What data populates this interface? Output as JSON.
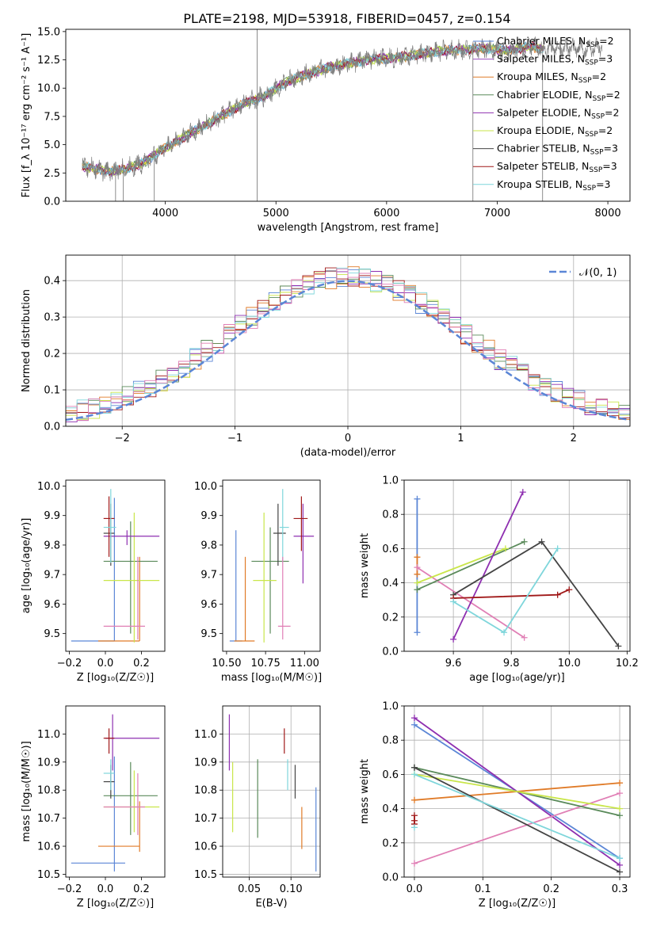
{
  "figure_title": "PLATE=2198, MJD=53918, FIBERID=0457, z=0.154",
  "colors": {
    "Chabrier MILES": "#5b86d6",
    "Salpeter MILES": "#9c4fbf",
    "Kroupa MILES": "#e07b28",
    "Chabrier ELODIE": "#5a8a5a",
    "Salpeter ELODIE": "#8e2fb0",
    "Kroupa ELODIE": "#c9e64a",
    "Chabrier STELIB": "#444444",
    "Salpeter STELIB": "#a01818",
    "Kroupa STELIB": "#7fd6db",
    "pink": "#e07fb5",
    "data": "#808080",
    "gaussian": "#5b86d6"
  },
  "chart_data": [
    {
      "id": "spectrum",
      "type": "line",
      "xlabel": "wavelength [Angstrom, rest frame]",
      "ylabel": "Flux [f_λ 10⁻¹⁷ erg cm⁻² s⁻¹ A⁻¹]",
      "xlim": [
        3100,
        8200
      ],
      "ylim": [
        0,
        15.2
      ],
      "xticks": [
        4000,
        5000,
        6000,
        7000,
        8000
      ],
      "yticks": [
        0.0,
        2.5,
        5.0,
        7.5,
        10.0,
        12.5,
        15.0
      ],
      "legend_position": "upper-right",
      "legend": [
        {
          "label": "Chabrier MILES, N",
          "sub": "SSP",
          "tail": "=2",
          "color_key": "Chabrier MILES"
        },
        {
          "label": "Salpeter MILES, N",
          "sub": "SSP",
          "tail": "=3",
          "color_key": "Salpeter MILES"
        },
        {
          "label": "Kroupa MILES, N",
          "sub": "SSP",
          "tail": "=2",
          "color_key": "Kroupa MILES"
        },
        {
          "label": "Chabrier ELODIE, N",
          "sub": "SSP",
          "tail": "=2",
          "color_key": "Chabrier ELODIE"
        },
        {
          "label": "Salpeter ELODIE, N",
          "sub": "SSP",
          "tail": "=2",
          "color_key": "Salpeter ELODIE"
        },
        {
          "label": "Kroupa ELODIE, N",
          "sub": "SSP",
          "tail": "=2",
          "color_key": "Kroupa ELODIE"
        },
        {
          "label": "Chabrier STELIB, N",
          "sub": "SSP",
          "tail": "=3",
          "color_key": "Chabrier STELIB"
        },
        {
          "label": "Salpeter STELIB, N",
          "sub": "SSP",
          "tail": "=3",
          "color_key": "Salpeter STELIB"
        },
        {
          "label": "Kroupa STELIB, N",
          "sub": "SSP",
          "tail": "=3",
          "color_key": "Kroupa STELIB"
        }
      ],
      "continuum": [
        [
          3250,
          3.1
        ],
        [
          3500,
          2.6
        ],
        [
          3650,
          2.9
        ],
        [
          3800,
          3.4
        ],
        [
          3950,
          4.4
        ],
        [
          4100,
          5.3
        ],
        [
          4300,
          6.4
        ],
        [
          4500,
          7.5
        ],
        [
          4700,
          8.6
        ],
        [
          4900,
          9.3
        ],
        [
          5100,
          10.6
        ],
        [
          5300,
          11.3
        ],
        [
          5500,
          11.9
        ],
        [
          5700,
          12.3
        ],
        [
          5900,
          12.6
        ],
        [
          6100,
          12.7
        ],
        [
          6300,
          13.0
        ],
        [
          6500,
          13.3
        ],
        [
          6700,
          13.4
        ],
        [
          6900,
          13.5
        ],
        [
          7100,
          13.3
        ],
        [
          7300,
          13.7
        ],
        [
          7400,
          13.5
        ]
      ],
      "data_extent": [
        3250,
        7950
      ],
      "spikes": [
        [
          4830,
          0.0,
          15.2
        ],
        [
          3550,
          0.0,
          3.5
        ],
        [
          3620,
          0.0,
          3.2
        ],
        [
          3900,
          0.0,
          4.0
        ],
        [
          6780,
          0.0,
          13.5
        ],
        [
          7410,
          0.0,
          13.5
        ]
      ]
    },
    {
      "id": "residuals",
      "type": "line",
      "xlabel": "(data-model)/error",
      "ylabel": "Normed distribution",
      "xlim": [
        -2.5,
        2.5
      ],
      "ylim": [
        0,
        0.47
      ],
      "xticks": [
        -2,
        -1,
        0,
        1,
        2
      ],
      "yticks": [
        0.0,
        0.1,
        0.2,
        0.3,
        0.4
      ],
      "legend_position": "upper-right",
      "legend_label": "𝒩(0, 1)",
      "grid": true
    },
    {
      "id": "age_vs_Z",
      "type": "scatter",
      "xlabel": "Z [log₁₀(Z/Z☉)]",
      "ylabel": "age  [log₁₀(age/yr)]",
      "xlim": [
        -0.22,
        0.33
      ],
      "ylim": [
        9.44,
        10.02
      ],
      "xticks": [
        -0.2,
        0.0,
        0.2
      ],
      "yticks": [
        9.5,
        9.6,
        9.7,
        9.8,
        9.9,
        10.0
      ],
      "points": [
        {
          "c": "Chabrier MILES",
          "x": 0.05,
          "xlo": -0.19,
          "xhi": 0.05,
          "y": 9.475,
          "ylo": 9.475,
          "yhi": 9.96
        },
        {
          "c": "Kroupa MILES",
          "x": 0.19,
          "xlo": -0.04,
          "xhi": 0.19,
          "y": 9.475,
          "ylo": 9.475,
          "yhi": 9.76
        },
        {
          "c": "Chabrier ELODIE",
          "x": 0.14,
          "xlo": -0.01,
          "xhi": 0.29,
          "y": 9.745,
          "ylo": 9.5,
          "yhi": 9.88
        },
        {
          "c": "Kroupa ELODIE",
          "x": 0.16,
          "xlo": -0.01,
          "xhi": 0.3,
          "y": 9.68,
          "ylo": 9.47,
          "yhi": 9.91
        },
        {
          "c": "Salpeter ELODIE",
          "x": 0.12,
          "xlo": -0.01,
          "xhi": 0.3,
          "y": 9.83,
          "ylo": 9.8,
          "yhi": 9.85
        },
        {
          "c": "Chabrier STELIB",
          "x": 0.03,
          "xlo": -0.01,
          "xhi": 0.05,
          "y": 9.84,
          "ylo": 9.73,
          "yhi": 9.94
        },
        {
          "c": "Salpeter STELIB",
          "x": 0.02,
          "xlo": -0.01,
          "xhi": 0.05,
          "y": 9.89,
          "ylo": 9.76,
          "yhi": 9.965
        },
        {
          "c": "Kroupa STELIB",
          "x": 0.03,
          "xlo": -0.01,
          "xhi": 0.06,
          "y": 9.86,
          "ylo": 9.74,
          "yhi": 9.99
        },
        {
          "c": "pink",
          "x": 0.18,
          "xlo": -0.01,
          "xhi": 0.22,
          "y": 9.525,
          "ylo": 9.48,
          "yhi": 9.76
        }
      ]
    },
    {
      "id": "age_vs_mass",
      "type": "scatter",
      "xlabel": "mass [log₁₀(M/M☉)]",
      "ylabel": "",
      "xlim": [
        10.475,
        11.1
      ],
      "ylim": [
        9.44,
        10.02
      ],
      "xticks": [
        10.5,
        10.75,
        11.0
      ],
      "yticks": [
        9.5,
        9.6,
        9.7,
        9.8,
        9.9,
        10.0
      ],
      "points": [
        {
          "c": "Chabrier MILES",
          "x": 10.56,
          "xlo": 10.52,
          "xhi": 10.6,
          "y": 9.475,
          "ylo": 9.475,
          "yhi": 9.85
        },
        {
          "c": "Kroupa MILES",
          "x": 10.62,
          "xlo": 10.55,
          "xhi": 10.68,
          "y": 9.475,
          "ylo": 9.475,
          "yhi": 9.76
        },
        {
          "c": "Chabrier ELODIE",
          "x": 10.78,
          "xlo": 10.66,
          "xhi": 10.9,
          "y": 9.745,
          "ylo": 9.5,
          "yhi": 9.86
        },
        {
          "c": "Kroupa ELODIE",
          "x": 10.74,
          "xlo": 10.67,
          "xhi": 10.82,
          "y": 9.68,
          "ylo": 9.47,
          "yhi": 9.91
        },
        {
          "c": "Salpeter ELODIE",
          "x": 10.99,
          "xlo": 10.93,
          "xhi": 11.06,
          "y": 9.83,
          "ylo": 9.67,
          "yhi": 9.94
        },
        {
          "c": "Chabrier STELIB",
          "x": 10.83,
          "xlo": 10.8,
          "xhi": 10.88,
          "y": 9.84,
          "ylo": 9.73,
          "yhi": 9.94
        },
        {
          "c": "Salpeter STELIB",
          "x": 10.98,
          "xlo": 10.93,
          "xhi": 11.02,
          "y": 9.89,
          "ylo": 9.78,
          "yhi": 9.965
        },
        {
          "c": "Kroupa STELIB",
          "x": 10.86,
          "xlo": 10.84,
          "xhi": 10.9,
          "y": 9.86,
          "ylo": 9.74,
          "yhi": 9.99
        },
        {
          "c": "pink",
          "x": 10.86,
          "xlo": 10.83,
          "xhi": 10.91,
          "y": 9.525,
          "ylo": 9.48,
          "yhi": 9.76
        }
      ]
    },
    {
      "id": "weight_vs_age",
      "type": "line",
      "xlabel": "age  [log₁₀(age/yr)]",
      "ylabel": "mass weight",
      "xlim": [
        9.43,
        10.21
      ],
      "ylim": [
        0,
        1.0
      ],
      "xticks": [
        9.6,
        9.8,
        10.0,
        10.2
      ],
      "yticks": [
        0.0,
        0.2,
        0.4,
        0.6,
        0.8,
        1.0
      ],
      "grid": true,
      "series": [
        {
          "c": "Chabrier MILES",
          "x": [
            9.475,
            9.475
          ],
          "y": [
            0.11,
            0.89
          ]
        },
        {
          "c": "Kroupa MILES",
          "x": [
            9.475,
            9.475
          ],
          "y": [
            0.45,
            0.55
          ]
        },
        {
          "c": "pink",
          "x": [
            9.475,
            9.845
          ],
          "y": [
            0.49,
            0.08
          ]
        },
        {
          "c": "Chabrier ELODIE",
          "x": [
            9.475,
            9.845
          ],
          "y": [
            0.36,
            0.64
          ]
        },
        {
          "c": "Kroupa ELODIE",
          "x": [
            9.475,
            9.78
          ],
          "y": [
            0.4,
            0.6
          ]
        },
        {
          "c": "Salpeter ELODIE",
          "x": [
            9.6,
            9.84
          ],
          "y": [
            0.07,
            0.93
          ]
        },
        {
          "c": "Chabrier STELIB",
          "x": [
            9.6,
            9.905,
            10.17
          ],
          "y": [
            0.33,
            0.64,
            0.03
          ]
        },
        {
          "c": "Salpeter STELIB",
          "x": [
            9.6,
            9.96,
            10.0
          ],
          "y": [
            0.31,
            0.33,
            0.36
          ]
        },
        {
          "c": "Kroupa STELIB",
          "x": [
            9.6,
            9.775,
            9.96
          ],
          "y": [
            0.29,
            0.11,
            0.6
          ]
        }
      ]
    },
    {
      "id": "mass_vs_Z",
      "type": "scatter",
      "xlabel": "Z [log₁₀(Z/Z☉)]",
      "ylabel": "mass [log₁₀(M/M☉)]",
      "xlim": [
        -0.22,
        0.33
      ],
      "ylim": [
        10.49,
        11.1
      ],
      "xticks": [
        -0.2,
        0.0,
        0.2
      ],
      "yticks": [
        10.5,
        10.6,
        10.7,
        10.8,
        10.9,
        11.0
      ],
      "points": [
        {
          "c": "Chabrier MILES",
          "x": 0.05,
          "xlo": -0.19,
          "xhi": 0.11,
          "y": 10.54,
          "ylo": 10.51,
          "yhi": 10.92
        },
        {
          "c": "Kroupa MILES",
          "x": 0.19,
          "xlo": -0.04,
          "xhi": 0.19,
          "y": 10.6,
          "ylo": 10.58,
          "yhi": 10.76
        },
        {
          "c": "Chabrier ELODIE",
          "x": 0.14,
          "xlo": -0.01,
          "xhi": 0.29,
          "y": 10.78,
          "ylo": 10.64,
          "yhi": 10.9
        },
        {
          "c": "Kroupa ELODIE",
          "x": 0.16,
          "xlo": -0.01,
          "xhi": 0.3,
          "y": 10.74,
          "ylo": 10.65,
          "yhi": 10.87
        },
        {
          "c": "Salpeter ELODIE",
          "x": 0.04,
          "xlo": 0.0,
          "xhi": 0.3,
          "y": 10.985,
          "ylo": 10.87,
          "yhi": 11.07
        },
        {
          "c": "Chabrier STELIB",
          "x": 0.03,
          "xlo": -0.01,
          "xhi": 0.05,
          "y": 10.83,
          "ylo": 10.77,
          "yhi": 10.89
        },
        {
          "c": "Salpeter STELIB",
          "x": 0.02,
          "xlo": -0.01,
          "xhi": 0.05,
          "y": 10.985,
          "ylo": 10.93,
          "yhi": 11.02
        },
        {
          "c": "Kroupa STELIB",
          "x": 0.03,
          "xlo": -0.01,
          "xhi": 0.05,
          "y": 10.86,
          "ylo": 10.8,
          "yhi": 10.91
        },
        {
          "c": "pink",
          "x": 0.18,
          "xlo": -0.01,
          "xhi": 0.22,
          "y": 10.74,
          "ylo": 10.64,
          "yhi": 10.86
        }
      ]
    },
    {
      "id": "mass_vs_EBV",
      "type": "scatter",
      "xlabel": "E(B-V)",
      "ylabel": "",
      "xlim": [
        0.018,
        0.135
      ],
      "ylim": [
        10.49,
        11.1
      ],
      "xticks": [
        0.05,
        0.1
      ],
      "yticks": [
        10.5,
        10.6,
        10.7,
        10.8,
        10.9,
        11.0
      ],
      "grid": true,
      "points": [
        {
          "c": "Salpeter ELODIE",
          "x": 0.026,
          "y": 10.985,
          "ylo": 10.87,
          "yhi": 11.07
        },
        {
          "c": "Kroupa ELODIE",
          "x": 0.03,
          "y": 10.74,
          "ylo": 10.65,
          "yhi": 10.9
        },
        {
          "c": "Chabrier ELODIE",
          "x": 0.06,
          "y": 10.78,
          "ylo": 10.63,
          "yhi": 10.91
        },
        {
          "c": "Salpeter STELIB",
          "x": 0.092,
          "y": 10.985,
          "ylo": 10.93,
          "yhi": 11.02
        },
        {
          "c": "Kroupa STELIB",
          "x": 0.096,
          "y": 10.86,
          "ylo": 10.8,
          "yhi": 10.91
        },
        {
          "c": "Chabrier STELIB",
          "x": 0.105,
          "y": 10.83,
          "ylo": 10.77,
          "yhi": 10.89
        },
        {
          "c": "Kroupa MILES",
          "x": 0.113,
          "y": 10.6,
          "ylo": 10.59,
          "yhi": 10.74
        },
        {
          "c": "Chabrier MILES",
          "x": 0.13,
          "y": 10.54,
          "ylo": 10.51,
          "yhi": 10.81
        }
      ]
    },
    {
      "id": "weight_vs_Z",
      "type": "line",
      "xlabel": "Z [log₁₀(Z/Z☉)]",
      "ylabel": "mass weight",
      "xlim": [
        -0.015,
        0.315
      ],
      "ylim": [
        0,
        1.0
      ],
      "xticks": [
        0.0,
        0.1,
        0.2,
        0.3
      ],
      "yticks": [
        0.0,
        0.2,
        0.4,
        0.6,
        0.8,
        1.0
      ],
      "grid": true,
      "series": [
        {
          "c": "Chabrier MILES",
          "x": [
            0.0,
            0.3
          ],
          "y": [
            0.89,
            0.11
          ]
        },
        {
          "c": "Salpeter ELODIE",
          "x": [
            0.0,
            0.3
          ],
          "y": [
            0.93,
            0.07
          ]
        },
        {
          "c": "Kroupa MILES",
          "x": [
            0.0,
            0.3
          ],
          "y": [
            0.45,
            0.55
          ]
        },
        {
          "c": "pink",
          "x": [
            0.0,
            0.3
          ],
          "y": [
            0.08,
            0.49
          ]
        },
        {
          "c": "Chabrier ELODIE",
          "x": [
            0.0,
            0.3
          ],
          "y": [
            0.64,
            0.36
          ]
        },
        {
          "c": "Kroupa ELODIE",
          "x": [
            0.0,
            0.3
          ],
          "y": [
            0.6,
            0.4
          ]
        },
        {
          "c": "Chabrier STELIB",
          "x": [
            0.0,
            0.3
          ],
          "y": [
            0.64,
            0.03
          ]
        },
        {
          "c": "Kroupa STELIB",
          "x": [
            0.0,
            0.3
          ],
          "y": [
            0.6,
            0.11
          ]
        },
        {
          "c": "Salpeter STELIB",
          "x": [
            0.0,
            0.0,
            0.0
          ],
          "y": [
            0.31,
            0.33,
            0.36
          ]
        },
        {
          "c": "Kroupa STELIB",
          "x": [
            0.0
          ],
          "y": [
            0.29
          ]
        }
      ]
    }
  ]
}
